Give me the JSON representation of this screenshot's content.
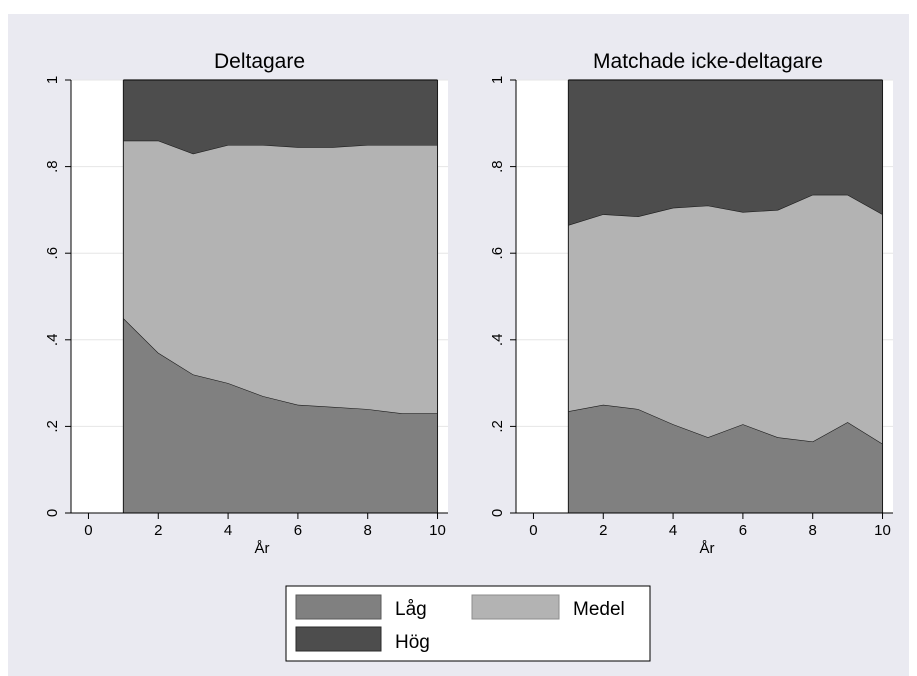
{
  "legend": {
    "items": [
      {
        "label": "Låg",
        "color": "#808080"
      },
      {
        "label": "Medel",
        "color": "#b3b3b3"
      },
      {
        "label": "Hög",
        "color": "#4d4d4d"
      }
    ]
  },
  "colors": {
    "outer_background": "#eaeaf1",
    "plot_background": "#ffffff",
    "low": "#808080",
    "medium": "#b3b3b3",
    "high": "#4d4d4d",
    "gridline": "#e6e6e6"
  },
  "chart_data": [
    {
      "type": "area",
      "stacked": true,
      "title": "Deltagare",
      "xlabel": "År",
      "ylabel": "",
      "xlim": [
        -0.5,
        10.3
      ],
      "ylim": [
        0,
        1
      ],
      "xticks": [
        0,
        2,
        4,
        6,
        8,
        10
      ],
      "xtick_labels": [
        "0",
        "2",
        "4",
        "6",
        "8",
        "10"
      ],
      "yticks": [
        0,
        0.2,
        0.4,
        0.6,
        0.8,
        1
      ],
      "ytick_labels": [
        "0",
        ".2",
        ".4",
        ".6",
        ".8",
        "1"
      ],
      "grid": true,
      "x": [
        1,
        2,
        3,
        4,
        5,
        6,
        7,
        8,
        9,
        10
      ],
      "series": [
        {
          "name": "Låg",
          "values": [
            0.45,
            0.37,
            0.32,
            0.3,
            0.27,
            0.25,
            0.245,
            0.24,
            0.23,
            0.23
          ]
        },
        {
          "name": "Medel",
          "values": [
            0.41,
            0.49,
            0.51,
            0.55,
            0.58,
            0.595,
            0.6,
            0.61,
            0.62,
            0.62
          ]
        },
        {
          "name": "Hög",
          "values": [
            0.14,
            0.14,
            0.17,
            0.15,
            0.15,
            0.155,
            0.155,
            0.15,
            0.15,
            0.15
          ]
        }
      ]
    },
    {
      "type": "area",
      "stacked": true,
      "title": "Matchade icke-deltagare",
      "xlabel": "År",
      "ylabel": "",
      "xlim": [
        -0.5,
        10.3
      ],
      "ylim": [
        0,
        1
      ],
      "xticks": [
        0,
        2,
        4,
        6,
        8,
        10
      ],
      "xtick_labels": [
        "0",
        "2",
        "4",
        "6",
        "8",
        "10"
      ],
      "yticks": [
        0,
        0.2,
        0.4,
        0.6,
        0.8,
        1
      ],
      "ytick_labels": [
        "0",
        ".2",
        ".4",
        ".6",
        ".8",
        "1"
      ],
      "grid": true,
      "x": [
        1,
        2,
        3,
        4,
        5,
        6,
        7,
        8,
        9,
        10
      ],
      "series": [
        {
          "name": "Låg",
          "values": [
            0.235,
            0.25,
            0.24,
            0.205,
            0.175,
            0.205,
            0.175,
            0.165,
            0.21,
            0.16
          ]
        },
        {
          "name": "Medel",
          "values": [
            0.43,
            0.44,
            0.445,
            0.5,
            0.535,
            0.49,
            0.525,
            0.57,
            0.525,
            0.53
          ]
        },
        {
          "name": "Hög",
          "values": [
            0.335,
            0.31,
            0.315,
            0.295,
            0.29,
            0.305,
            0.3,
            0.265,
            0.265,
            0.31
          ]
        }
      ]
    }
  ]
}
